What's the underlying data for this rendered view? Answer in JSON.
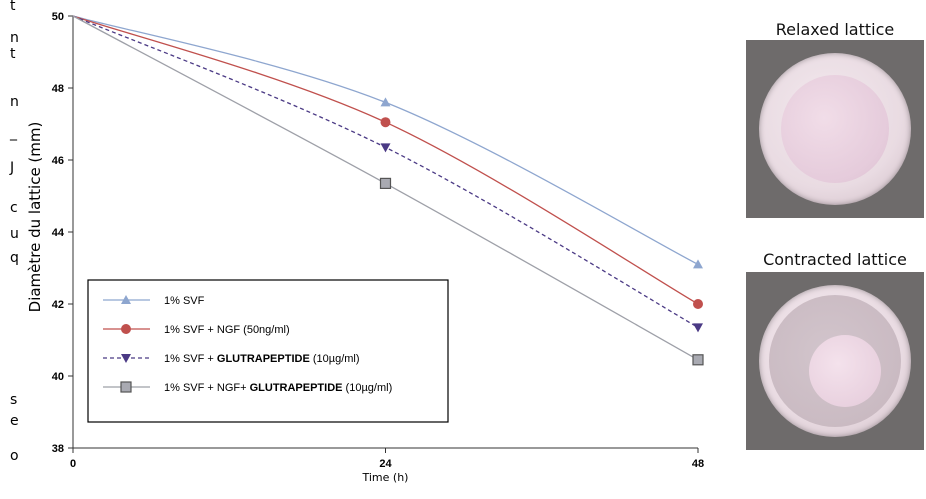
{
  "chart_data": {
    "type": "line",
    "xlabel": "Time (h)",
    "ylabel": "Diamètre du lattice (mm)",
    "x": [
      0,
      24,
      48
    ],
    "xticks": [
      "0",
      "24",
      "48"
    ],
    "yticks": [
      "38",
      "40",
      "42",
      "44",
      "46",
      "48",
      "50"
    ],
    "xlim": [
      0,
      48
    ],
    "ylim": [
      38,
      50
    ],
    "grid": false,
    "legend_position": "bottom-left",
    "series": [
      {
        "name": "1% SVF",
        "values": [
          50,
          47.6,
          43.1
        ],
        "color": "#8ea6cf",
        "marker": "triangle-up",
        "dash": "solid"
      },
      {
        "name": "1% SVF + NGF (50ng/ml)",
        "values": [
          50,
          47.05,
          42.0
        ],
        "color": "#c0504d",
        "marker": "circle",
        "dash": "solid"
      },
      {
        "name": "1% SVF + GLUTRAPEPTIDE (10µg/ml)",
        "values": [
          50,
          46.35,
          41.35
        ],
        "color": "#4b3a85",
        "marker": "triangle-down",
        "dash": "dashed"
      },
      {
        "name": "1% SVF + NGF+ GLUTRAPEPTIDE (10µg/ml)",
        "values": [
          50,
          45.35,
          40.45
        ],
        "color": "#9ea0a8",
        "marker": "square",
        "dash": "solid"
      }
    ],
    "legend_labels": [
      {
        "prefix": "1% SVF",
        "bold": "",
        "suffix": ""
      },
      {
        "prefix": "1% SVF + NGF (50ng/ml)",
        "bold": "",
        "suffix": ""
      },
      {
        "prefix": "1% SVF + ",
        "bold": "GLUTRAPEPTIDE",
        "suffix": " (10µg/ml)"
      },
      {
        "prefix": "1% SVF + NGF+ ",
        "bold": "GLUTRAPEPTIDE",
        "suffix": " (10µg/ml)"
      }
    ]
  },
  "photos": {
    "relaxed_label": "Relaxed lattice",
    "contracted_label": "Contracted lattice"
  },
  "left_edge_glyphs": [
    "t",
    "n",
    "t",
    "n",
    "_",
    "J",
    "c",
    "u",
    "q",
    "s",
    "e",
    "o"
  ]
}
